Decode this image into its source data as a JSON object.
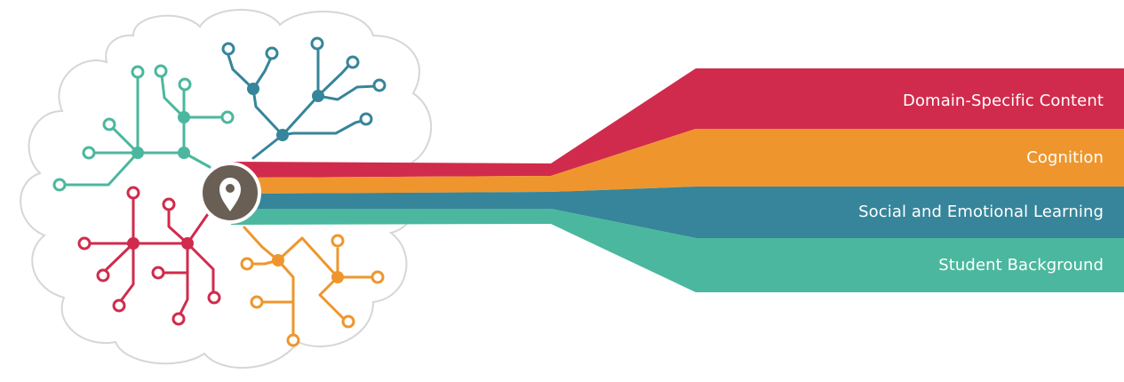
{
  "colors": {
    "domain": "#d02b4c",
    "cognition": "#ee962d",
    "social": "#36859a",
    "background": "#4bb79e",
    "center": "#6a5f55",
    "cloud_stroke": "#d4d4d4"
  },
  "bands": [
    {
      "id": "domain",
      "label": "Domain-Specific Content"
    },
    {
      "id": "cognition",
      "label": "Cognition"
    },
    {
      "id": "social",
      "label": "Social and Emotional Learning"
    },
    {
      "id": "background",
      "label": "Student Background"
    }
  ],
  "center_icon": "map-pin-icon",
  "branch_icon": "circuit-branch-icon"
}
